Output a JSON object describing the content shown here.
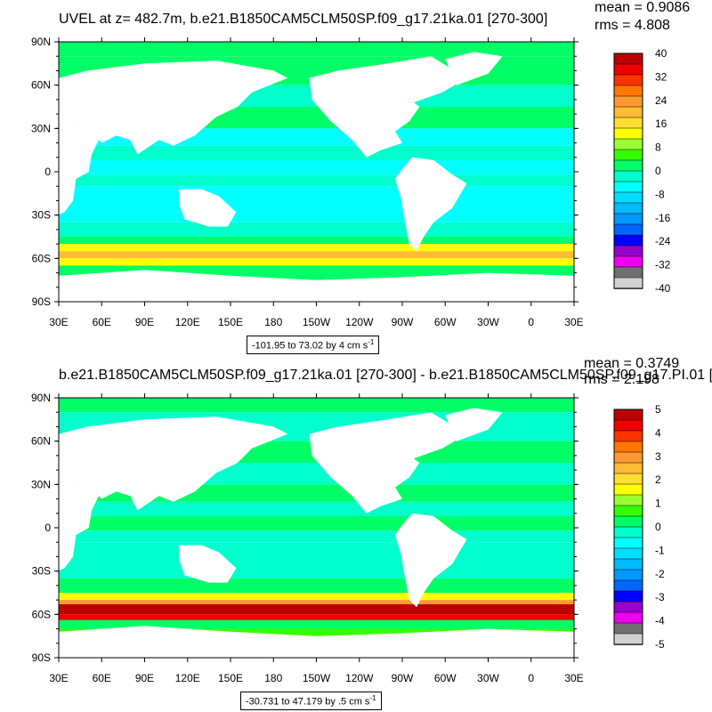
{
  "panels": [
    {
      "title": "UVEL at z= 482.7m, b.e21.B1850CAM5CLM50SP.f09_g17.21ka.01 [270-300]",
      "mean": "mean = 0.9086",
      "rms": "rms = 4.808",
      "range_text": "-101.95 to 73.02 by 4 cm s",
      "range_unit_exp": "-1",
      "colorbar_labels": [
        "40",
        "32",
        "24",
        "16",
        "8",
        "0",
        "-8",
        "-16",
        "-24",
        "-32",
        "-40"
      ]
    },
    {
      "title": "b.e21.B1850CAM5CLM50SP.f09_g17.21ka.01 [270-300] - b.e21.B1850CAM5CLM50SP.f09_g17.PI.01 [",
      "mean": "mean = 0.3749",
      "rms": "rms = 2.198",
      "range_text": "-30.731 to 47.179 by .5 cm s",
      "range_unit_exp": "-1",
      "colorbar_labels": [
        "5",
        "4",
        "3",
        "2",
        "1",
        "0",
        "-1",
        "-2",
        "-3",
        "-4",
        "-5"
      ]
    }
  ],
  "lat_labels": [
    "90N",
    "60N",
    "30N",
    "0",
    "30S",
    "60S",
    "90S"
  ],
  "lon_labels": [
    "30E",
    "60E",
    "90E",
    "120E",
    "150E",
    "180",
    "150W",
    "120W",
    "90W",
    "60W",
    "30W",
    "0",
    "30E"
  ],
  "colormap": [
    "#d1d1d1",
    "#707070",
    "#ee00ee",
    "#9900cc",
    "#0000ff",
    "#0066ff",
    "#0099ff",
    "#00bbff",
    "#00ddff",
    "#00ffff",
    "#00ffcc",
    "#00ff66",
    "#33ff00",
    "#99ff33",
    "#ffff00",
    "#ffdd33",
    "#ffbb33",
    "#ff9933",
    "#ff7700",
    "#ff3300",
    "#ee0000",
    "#bb0000"
  ],
  "land_color": "#ffffff"
}
